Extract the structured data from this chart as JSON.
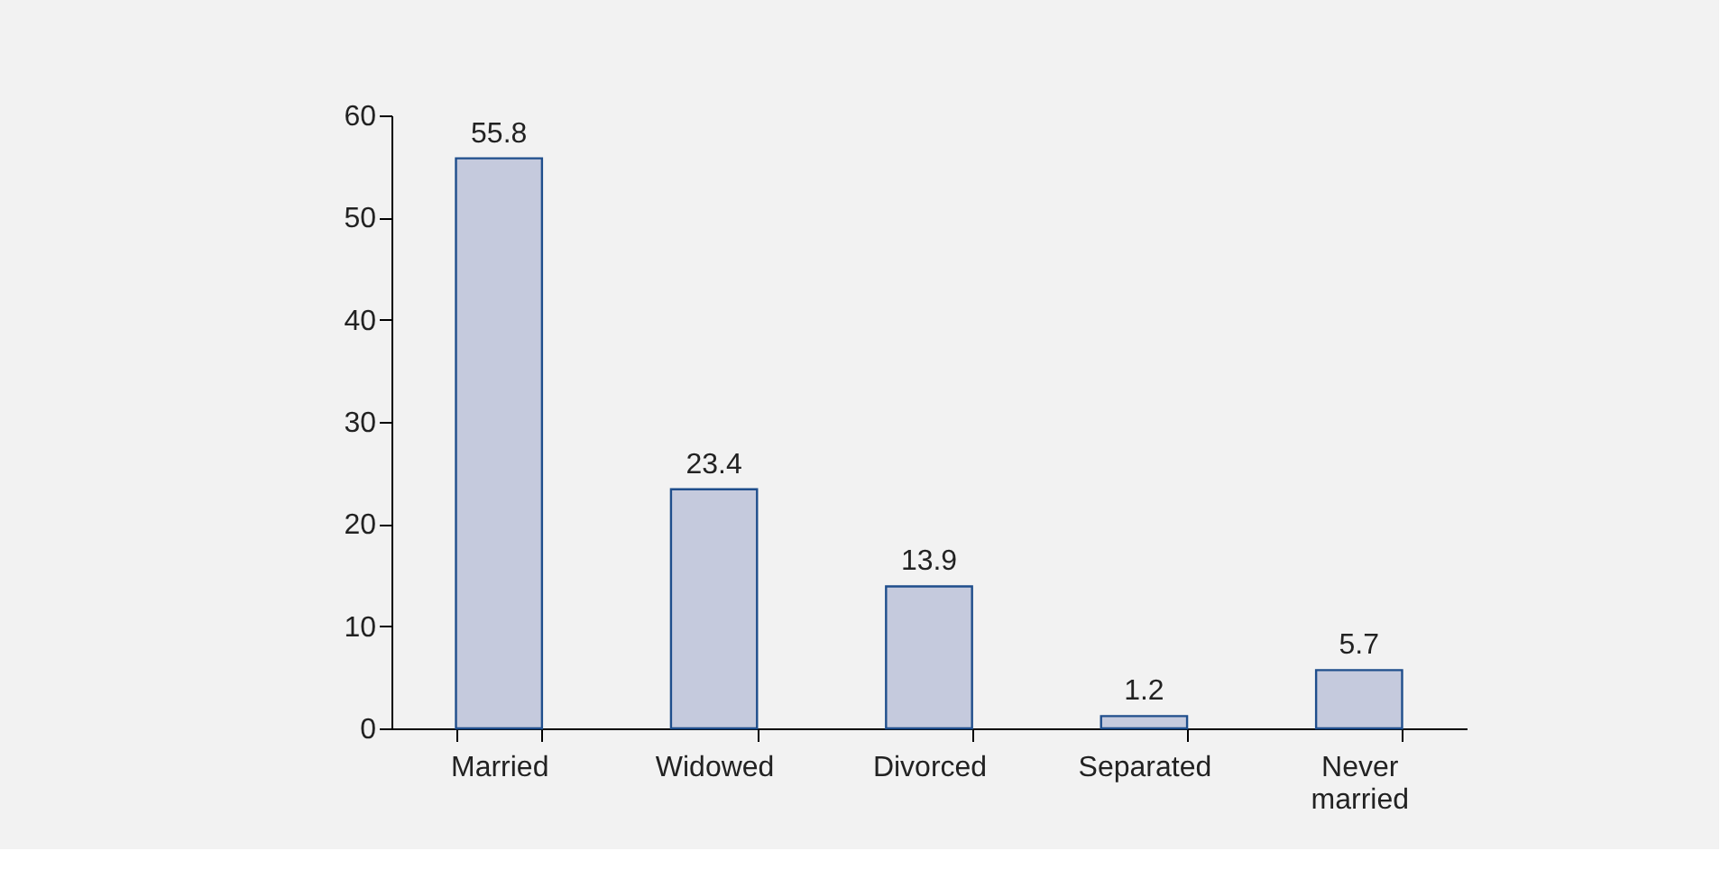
{
  "chart_data": {
    "type": "bar",
    "categories": [
      "Married",
      "Widowed",
      "Divorced",
      "Separated",
      "Never married"
    ],
    "values": [
      55.8,
      23.4,
      13.9,
      1.2,
      5.7
    ],
    "color": "#c5cadd",
    "ylim": [
      0,
      60
    ],
    "yticks": [
      0,
      10,
      20,
      30,
      40,
      50,
      60
    ],
    "grid": false,
    "data_labels": true
  }
}
